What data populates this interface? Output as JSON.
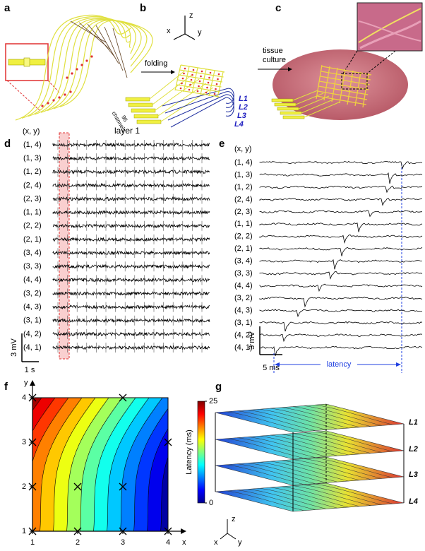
{
  "panel_labels": [
    "a",
    "b",
    "c",
    "d",
    "e",
    "f",
    "g"
  ],
  "b": {
    "axes": {
      "z": "z",
      "x": "x",
      "y": "y"
    },
    "arrow_label": "folding",
    "channels": [
      "96",
      "channels"
    ],
    "layers": [
      "L1",
      "L2",
      "L3",
      "L4"
    ]
  },
  "c": {
    "arrow_label": [
      "tissue",
      "culture"
    ]
  },
  "d": {
    "title": "layer 1",
    "header": "(x, y)",
    "rows": [
      "(1, 4)",
      "(1, 3)",
      "(1, 2)",
      "(2, 4)",
      "(2, 3)",
      "(1, 1)",
      "(2, 2)",
      "(2, 1)",
      "(3, 4)",
      "(3, 3)",
      "(4, 4)",
      "(3, 2)",
      "(4, 3)",
      "(3, 1)",
      "(4, 2)",
      "(4, 1)"
    ],
    "scale_v": "3 mV",
    "scale_t": "1 s"
  },
  "e": {
    "header": "(x, y)",
    "rows": [
      "(1, 4)",
      "(1, 3)",
      "(1, 2)",
      "(2, 4)",
      "(2, 3)",
      "(1, 1)",
      "(2, 2)",
      "(2, 1)",
      "(3, 4)",
      "(3, 3)",
      "(4, 4)",
      "(3, 2)",
      "(4, 3)",
      "(3, 1)",
      "(4, 2)",
      "(4, 1)"
    ],
    "scale_v": "3 mV",
    "scale_t": "5 ms",
    "latency": "latency"
  },
  "f": {
    "x_label": "x",
    "y_label": "y",
    "xlim": [
      1,
      4
    ],
    "ylim": [
      1,
      4
    ],
    "xticks": [
      1,
      2,
      3,
      4
    ],
    "yticks": [
      1,
      2,
      3,
      4
    ],
    "markers": {
      "x": [
        1,
        3,
        1,
        4,
        1,
        2,
        3,
        1,
        2,
        3,
        4
      ],
      "y": [
        4,
        4,
        3,
        3,
        2,
        2,
        2,
        1,
        1,
        1,
        1
      ]
    },
    "colorbar": {
      "label": "Latency (ms)",
      "lim": [
        0,
        25
      ],
      "ticks": [
        0,
        25
      ]
    }
  },
  "g": {
    "axes": {
      "z": "z",
      "x": "x",
      "y": "y"
    },
    "layers": [
      "L1",
      "L2",
      "L3",
      "L4"
    ]
  }
}
